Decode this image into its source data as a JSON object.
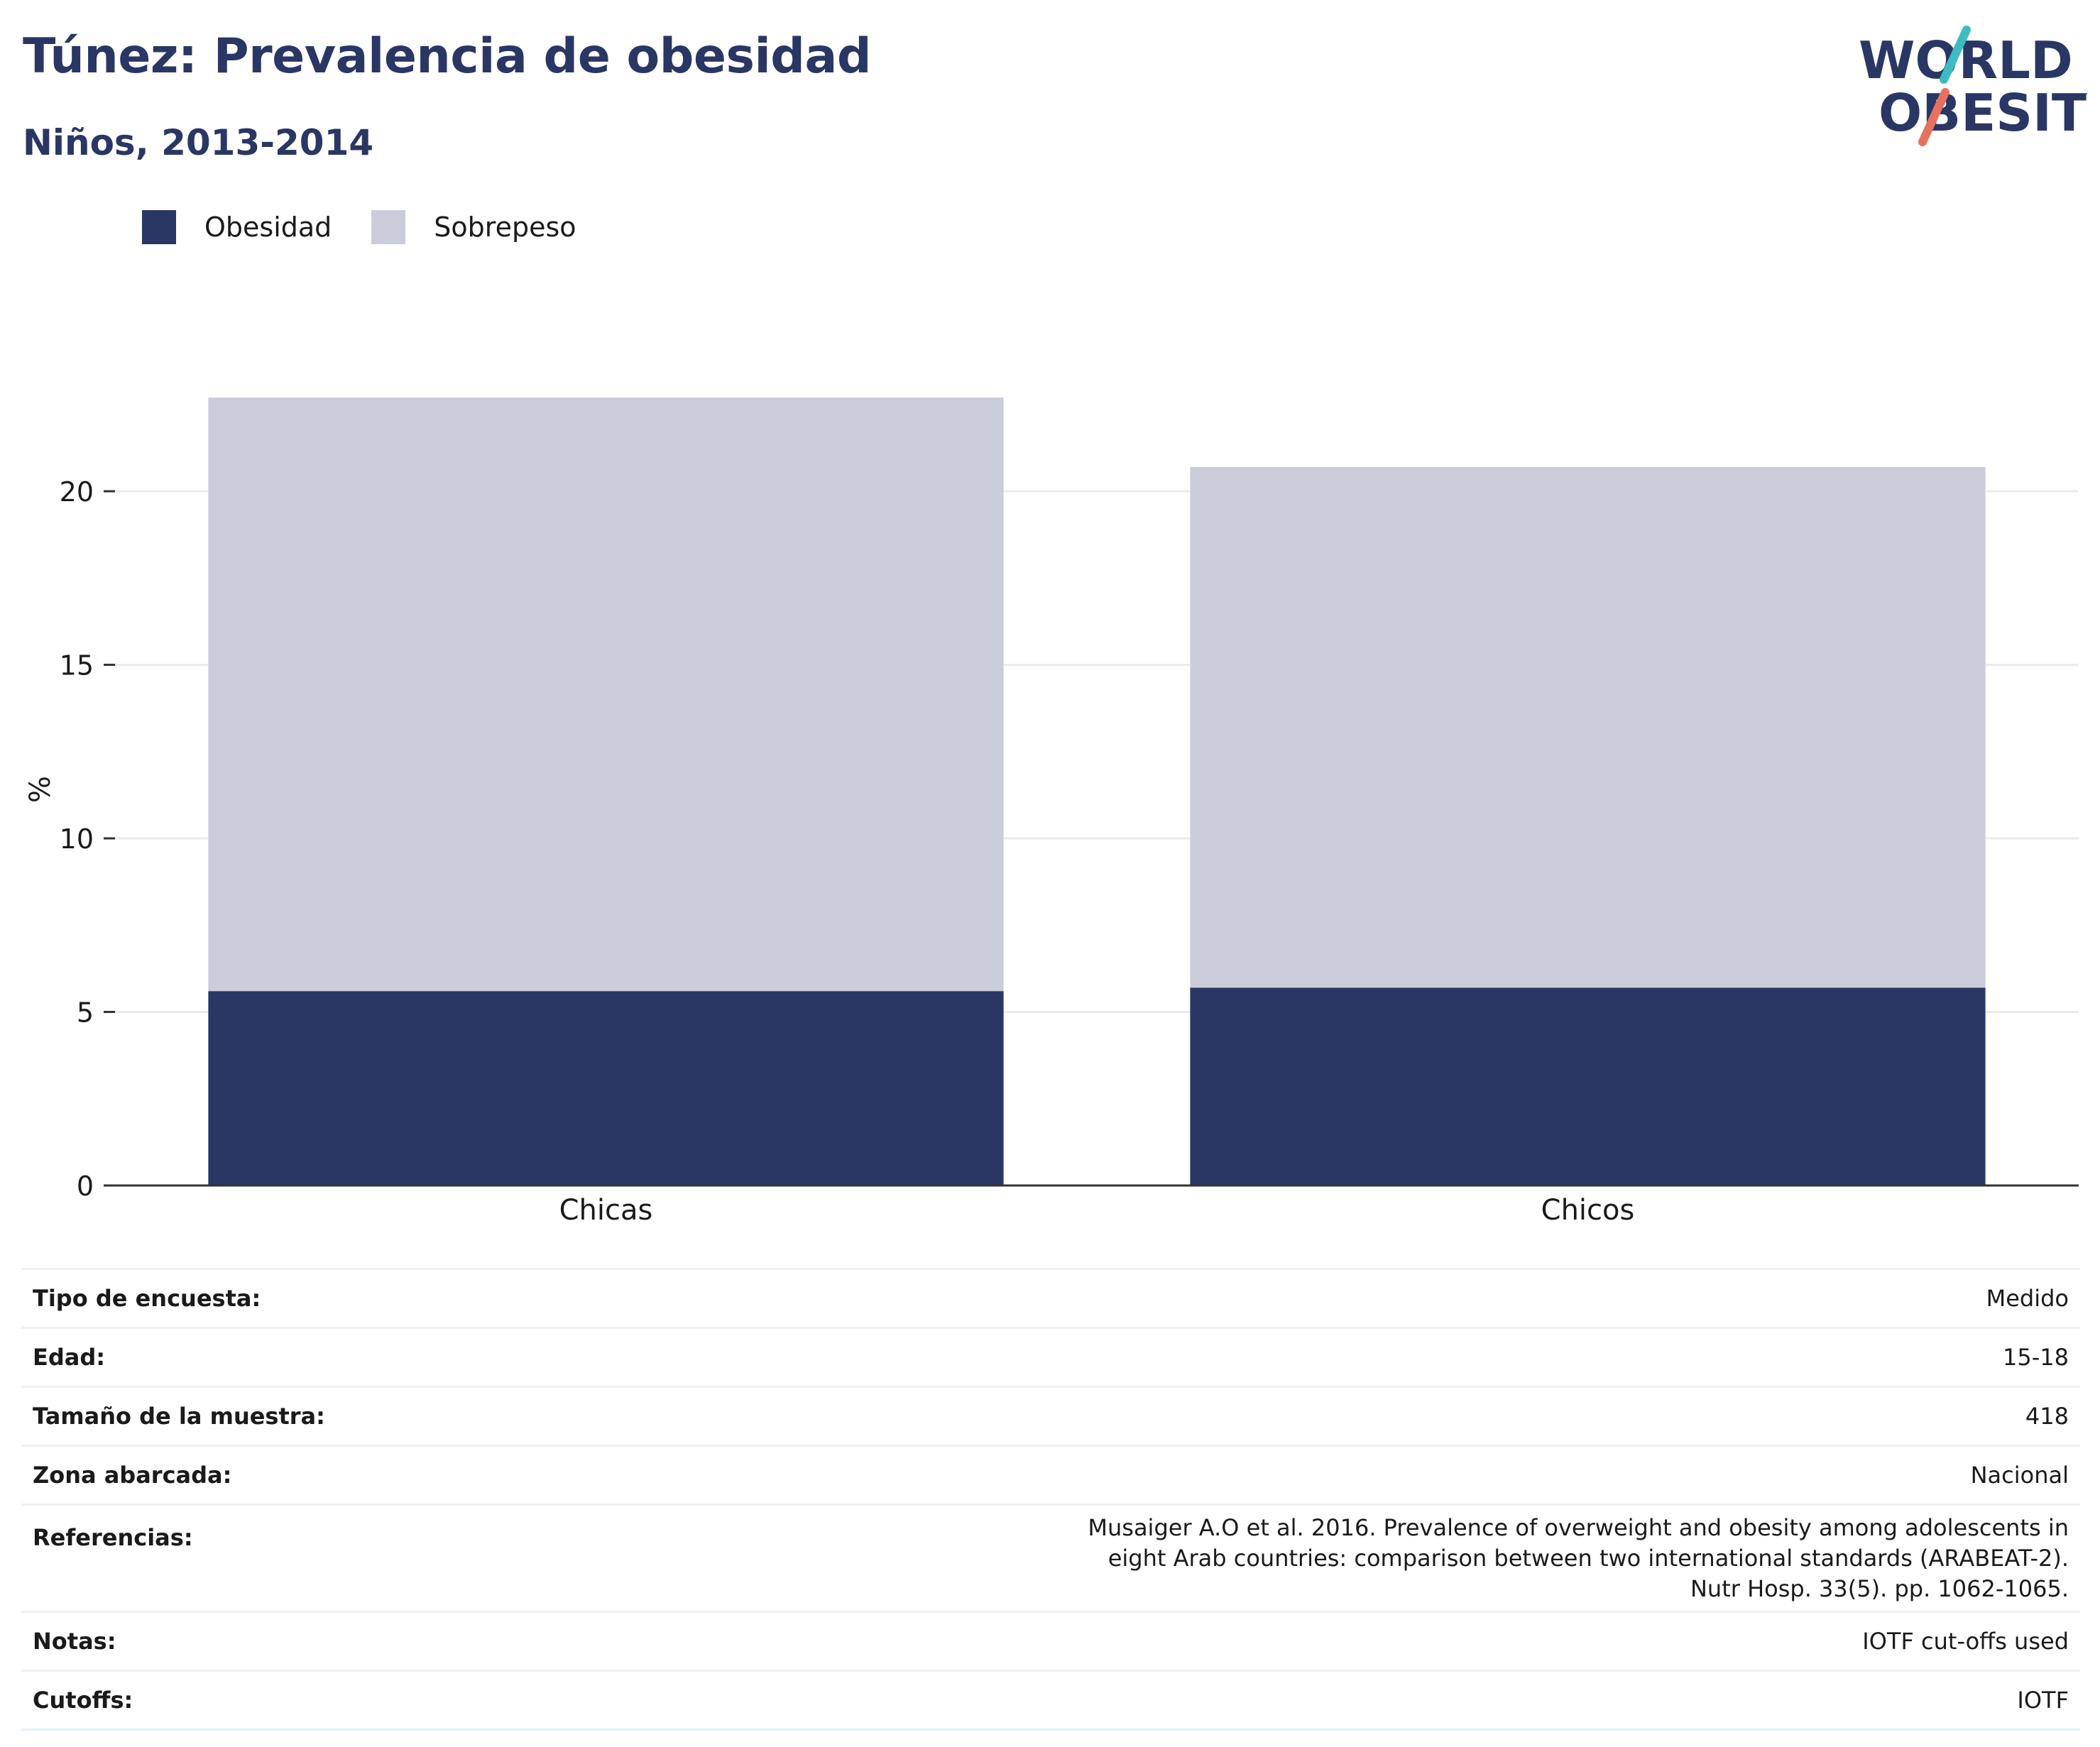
{
  "title": "Túnez: Prevalencia de obesidad",
  "subtitle": "Niños, 2013-2014",
  "logo": {
    "line1": "WORLD",
    "line2": "OBESITY"
  },
  "colors": {
    "obesity": "#2a3664",
    "overweight": "#cacdd9",
    "title": "#2a3664"
  },
  "chart_data": {
    "type": "bar",
    "stacked": true,
    "categories": [
      "Chicas",
      "Chicos"
    ],
    "series": [
      {
        "name": "Obesidad",
        "values": [
          5.6,
          5.7
        ]
      },
      {
        "name": "Sobrepeso",
        "values": [
          17.1,
          15.0
        ]
      }
    ],
    "ylabel": "%",
    "ylim": [
      0,
      22.7
    ],
    "yticks": [
      0,
      5,
      10,
      15,
      20
    ],
    "grid": true,
    "legend_position": "top-left"
  },
  "metadata": [
    {
      "label": "Tipo de encuesta:",
      "value": "Medido"
    },
    {
      "label": "Edad:",
      "value": "15-18"
    },
    {
      "label": "Tamaño de la muestra:",
      "value": "418"
    },
    {
      "label": "Zona abarcada:",
      "value": "Nacional"
    },
    {
      "label": "Referencias:",
      "value": "Musaiger A.O et al. 2016. Prevalence of overweight and obesity among adolescents in eight Arab countries: comparison between two international standards (ARABEAT-2). Nutr Hosp. 33(5). pp. 1062-1065."
    },
    {
      "label": "Notas:",
      "value": "IOTF cut-offs used"
    },
    {
      "label": "Cutoffs:",
      "value": "IOTF"
    }
  ]
}
